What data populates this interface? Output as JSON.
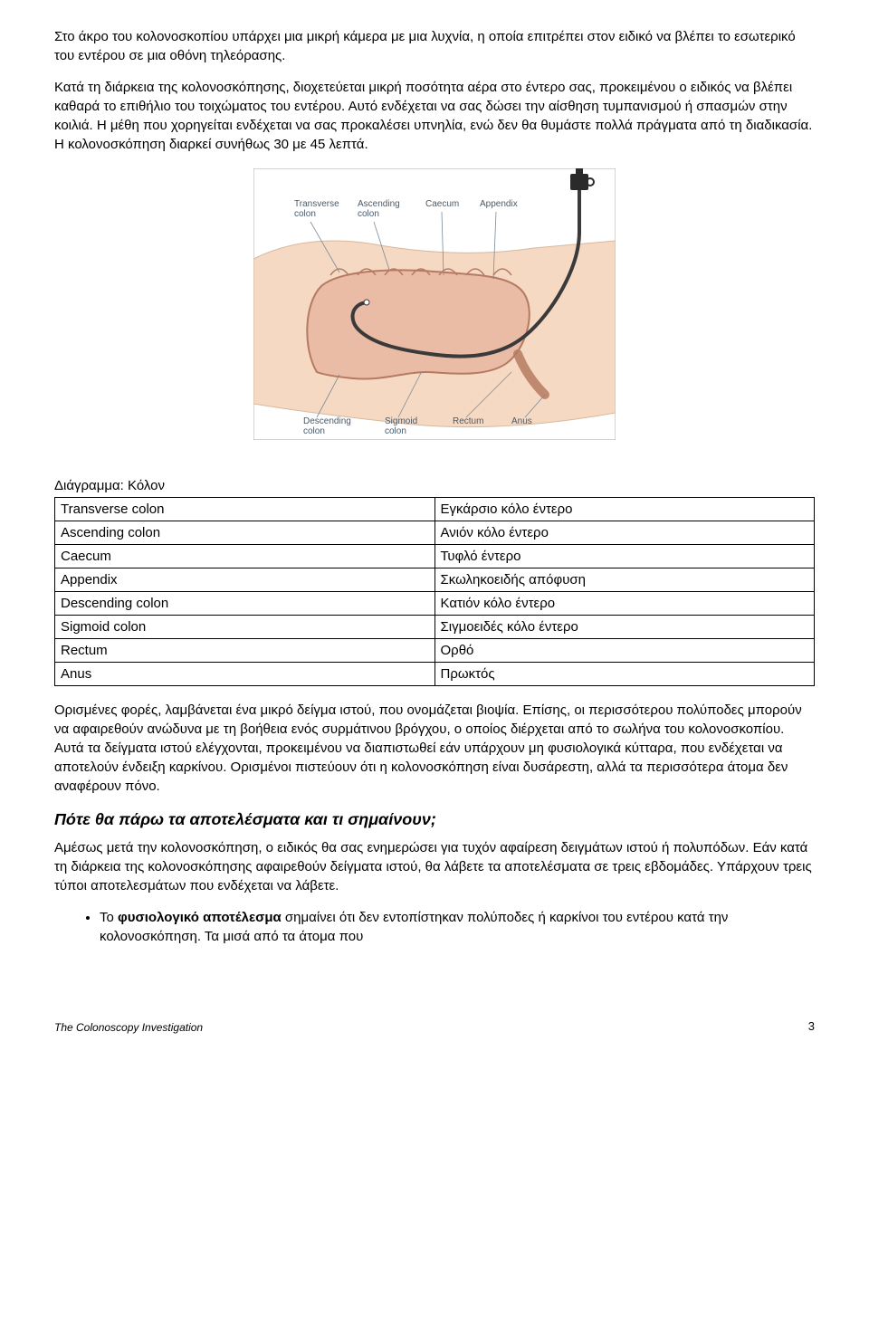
{
  "paragraphs": {
    "p1": "Στο άκρο του κολονοσκοπίου υπάρχει μια μικρή κάμερα με μια λυχνία, η οποία επιτρέπει στον ειδικό να βλέπει το εσωτερικό του εντέρου σε μια οθόνη τηλεόρασης.",
    "p2": "Κατά τη διάρκεια της κολονοσκόπησης, διοχετεύεται μικρή ποσότητα αέρα στο έντερο σας, προκειμένου ο ειδικός να βλέπει καθαρά το επιθήλιο του τοιχώματος του εντέρου. Αυτό ενδέχεται να σας δώσει την αίσθηση τυμπανισμού ή σπασμών στην κοιλιά. Η μέθη που χορηγείται ενδέχεται να σας προκαλέσει υπνηλία, ενώ δεν θα θυμάστε πολλά πράγματα από τη διαδικασία. Η κολονοσκόπηση διαρκεί συνήθως 30 με 45 λεπτά.",
    "p3": "Ορισμένες φορές, λαμβάνεται ένα μικρό δείγμα ιστού, που ονομάζεται βιοψία. Επίσης, οι περισσότερου πολύποδες μπορούν να αφαιρεθούν ανώδυνα με τη βοήθεια ενός συρμάτινου βρόγχου, ο οποίος διέρχεται από το σωλήνα του κολονοσκοπίου. Αυτά τα δείγματα ιστού ελέγχονται, προκειμένου να διαπιστωθεί εάν υπάρχουν μη φυσιολογικά κύτταρα, που ενδέχεται να αποτελούν ένδειξη καρκίνου. Ορισμένοι πιστεύουν ότι η κολονοσκόπηση είναι δυσάρεστη, αλλά τα περισσότερα άτομα δεν αναφέρουν πόνο.",
    "p4": "Αμέσως μετά την κολονοσκόπηση, ο ειδικός θα σας ενημερώσει για τυχόν αφαίρεση δειγμάτων ιστού ή πολυπόδων. Εάν κατά τη διάρκεια της κολονοσκόπησης αφαιρεθούν δείγματα ιστού, θα λάβετε τα αποτελέσματα σε τρεις εβδομάδες. Υπάρχουν τρεις τύποι αποτελεσμάτων που ενδέχεται να λάβετε."
  },
  "section_heading": "Πότε θα πάρω τα αποτελέσματα και τι σημαίνουν;",
  "bullet": {
    "prefix": "Το ",
    "bold": "φυσιολογικό αποτέλεσμα",
    "rest": " σημαίνει ότι δεν εντοπίστηκαν πολύποδες ή καρκίνοι του εντέρου κατά την κολονοσκόπηση. Τα μισά από τα άτομα που"
  },
  "diagram": {
    "title": "Διάγραμμα: Κόλον",
    "labels": {
      "transverse": "Transverse\ncolon",
      "ascending": "Ascending\ncolon",
      "caecum": "Caecum",
      "appendix": "Appendix",
      "descending": "Descending\ncolon",
      "sigmoid": "Sigmoid\ncolon",
      "rectum": "Rectum",
      "anus": "Anus"
    },
    "colors": {
      "skin": "#f6d9c2",
      "skin_stroke": "#d8b89c",
      "colon_fill": "#e8b5a0",
      "colon_stroke": "#b57a62",
      "scope": "#3a3a3a",
      "scope_handle": "#2a2a2a",
      "label_text": "#4a5a6a",
      "leader": "#7a8a9a",
      "bg": "#ffffff",
      "border": "#a8a8a8"
    }
  },
  "table": {
    "rows": [
      [
        "Transverse colon",
        "Εγκάρσιο κόλο έντερο"
      ],
      [
        "Ascending colon",
        "Ανιόν κόλο έντερο"
      ],
      [
        "Caecum",
        "Τυφλό έντερο"
      ],
      [
        "Appendix",
        "Σκωληκοειδής απόφυση"
      ],
      [
        "Descending colon",
        "Κατιόν κόλο έντερο"
      ],
      [
        "Sigmoid colon",
        "Σιγμοειδές κόλο έντερο"
      ],
      [
        "Rectum",
        "Ορθό"
      ],
      [
        "Anus",
        "Πρωκτός"
      ]
    ]
  },
  "footer": {
    "title": "The Colonoscopy Investigation",
    "page": "3"
  }
}
